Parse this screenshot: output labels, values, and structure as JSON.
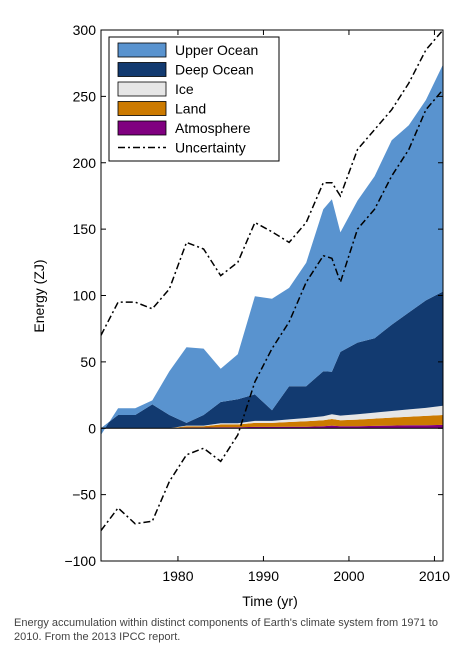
{
  "caption": "Energy accumulation within distinct components of Earth's climate system from 1971 to 2010. From the 2013 IPCC report.",
  "chart_data": {
    "type": "area",
    "xlabel": "Time (yr)",
    "ylabel": "Energy (ZJ)",
    "xlim": [
      1971,
      2011
    ],
    "ylim": [
      -100,
      300
    ],
    "x_ticks": [
      1980,
      1990,
      2000,
      2010
    ],
    "y_ticks": [
      -100,
      -50,
      0,
      50,
      100,
      150,
      200,
      250,
      300
    ],
    "x_tick_labels": [
      "1980",
      "1990",
      "2000",
      "2010"
    ],
    "y_tick_labels": [
      "−100",
      "−50",
      "0",
      "50",
      "100",
      "150",
      "200",
      "250",
      "300"
    ],
    "legend_position": "top-left",
    "grid": false,
    "stacked": true,
    "series": [
      {
        "name": "Atmosphere",
        "color": "#800080",
        "x": [
          1971,
          1973,
          1975,
          1977,
          1979,
          1981,
          1983,
          1985,
          1987,
          1989,
          1991,
          1993,
          1995,
          1997,
          1998,
          1999,
          2001,
          2003,
          2005,
          2007,
          2009,
          2011
        ],
        "values": [
          0,
          0,
          0,
          0,
          0,
          0.5,
          0.5,
          0.8,
          0.8,
          1,
          1,
          1.2,
          1.2,
          1.5,
          2,
          1.5,
          1.5,
          1.8,
          2,
          2.2,
          2.3,
          2.5
        ]
      },
      {
        "name": "Land",
        "color": "#cc7a00",
        "x": [
          1971,
          1973,
          1975,
          1977,
          1979,
          1981,
          1983,
          1985,
          1987,
          1989,
          1991,
          1993,
          1995,
          1997,
          1998,
          1999,
          2001,
          2003,
          2005,
          2007,
          2009,
          2011
        ],
        "values": [
          0,
          0,
          0,
          0,
          0,
          1,
          1,
          2,
          2,
          3,
          3,
          3.5,
          4,
          4.5,
          5,
          4.5,
          5,
          5.5,
          6,
          6.5,
          7,
          7.5
        ]
      },
      {
        "name": "Ice",
        "color": "#e6e6e6",
        "x": [
          1971,
          1973,
          1975,
          1977,
          1979,
          1981,
          1983,
          1985,
          1987,
          1989,
          1991,
          1993,
          1995,
          1997,
          1998,
          1999,
          2001,
          2003,
          2005,
          2007,
          2009,
          2011
        ],
        "values": [
          0,
          0,
          0,
          0,
          0,
          0.5,
          0.5,
          1,
          1,
          1.5,
          1.5,
          2,
          2.5,
          3,
          3.5,
          3.5,
          4,
          4.5,
          5,
          5.5,
          6,
          7
        ]
      },
      {
        "name": "Deep Ocean",
        "color": "#123a70",
        "x": [
          1971,
          1973,
          1975,
          1977,
          1979,
          1981,
          1983,
          1985,
          1987,
          1989,
          1991,
          1993,
          1995,
          1997,
          1998,
          1999,
          2001,
          2003,
          2005,
          2007,
          2009,
          2011
        ],
        "values": [
          0,
          10,
          10,
          18,
          10,
          2,
          8,
          16,
          18,
          20,
          8,
          25,
          24,
          34,
          32,
          48,
          54,
          56,
          65,
          73,
          81,
          86
        ]
      },
      {
        "name": "Upper Ocean",
        "color": "#5993cf",
        "x": [
          1971,
          1973,
          1975,
          1977,
          1979,
          1981,
          1983,
          1985,
          1987,
          1989,
          1991,
          1993,
          1995,
          1997,
          1998,
          1999,
          2001,
          2003,
          2005,
          2007,
          2009,
          2011
        ],
        "values": [
          -5,
          5,
          5,
          3,
          33,
          57,
          50,
          25,
          34,
          74,
          84,
          74,
          93,
          122,
          130,
          90,
          107,
          122,
          139,
          141,
          151,
          171
        ]
      },
      {
        "name": "Uncertainty",
        "color": "#000000",
        "x": [
          1971,
          1973,
          1975,
          1977,
          1979,
          1981,
          1983,
          1985,
          1987,
          1989,
          1991,
          1993,
          1995,
          1997,
          1998,
          1999,
          2001,
          2003,
          2005,
          2007,
          2009,
          2011
        ],
        "upper": [
          70,
          95,
          95,
          90,
          105,
          140,
          135,
          115,
          125,
          155,
          148,
          140,
          155,
          185,
          185,
          175,
          210,
          225,
          240,
          260,
          285,
          300
        ],
        "lower": [
          -77,
          -60,
          -72,
          -70,
          -40,
          -20,
          -15,
          -25,
          -5,
          35,
          60,
          80,
          110,
          130,
          128,
          110,
          150,
          165,
          190,
          210,
          240,
          255
        ]
      }
    ]
  }
}
